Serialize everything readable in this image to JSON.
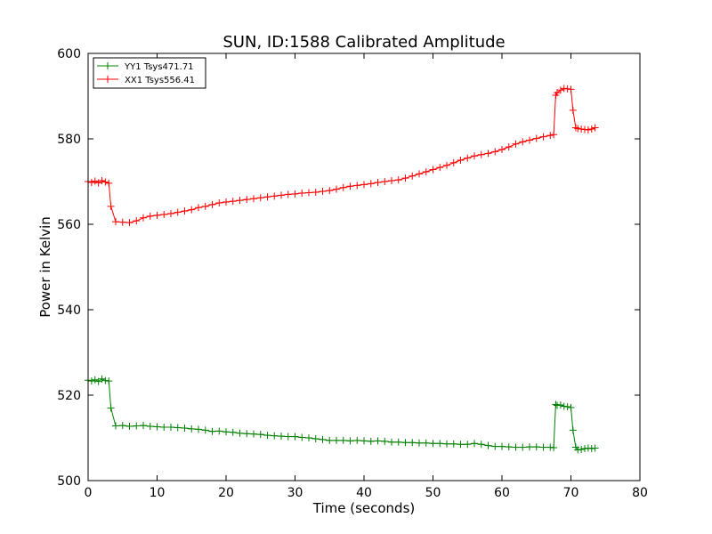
{
  "chart_data": {
    "type": "line",
    "title": "SUN, ID:1588 Calibrated Amplitude",
    "xlabel": "Time (seconds)",
    "ylabel": "Power in Kelvin",
    "xlim": [
      0,
      80
    ],
    "ylim": [
      500,
      600
    ],
    "xticks": [
      "0",
      "10",
      "20",
      "30",
      "40",
      "50",
      "60",
      "70",
      "80"
    ],
    "yticks": [
      "500",
      "520",
      "540",
      "560",
      "580",
      "600"
    ],
    "grid": false,
    "legend_position": "top-left",
    "marker": "+",
    "series": [
      {
        "name": "YY1 Tsys471.71",
        "color": "#008000",
        "x": [
          0,
          0.5,
          1,
          1.5,
          2,
          2.5,
          3,
          3.3,
          4,
          5,
          6,
          7,
          8,
          9,
          10,
          11,
          12,
          13,
          14,
          15,
          16,
          17,
          18,
          19,
          20,
          21,
          22,
          23,
          24,
          25,
          26,
          27,
          28,
          29,
          30,
          31,
          32,
          33,
          34,
          35,
          36,
          37,
          38,
          39,
          40,
          41,
          42,
          43,
          44,
          45,
          46,
          47,
          48,
          49,
          50,
          51,
          52,
          53,
          54,
          55,
          56,
          57,
          58,
          59,
          60,
          61,
          62,
          63,
          64,
          65,
          66,
          67,
          67.5,
          67.8,
          68,
          68.5,
          69,
          69.5,
          70,
          70.3,
          70.7,
          71,
          71.5,
          72,
          72.5,
          73,
          73.5
        ],
        "y": [
          523.5,
          523.3,
          523.6,
          523.2,
          523.8,
          523.4,
          523.3,
          517,
          512.8,
          512.9,
          512.7,
          512.8,
          512.9,
          512.7,
          512.6,
          512.5,
          512.5,
          512.4,
          512.3,
          512.1,
          512,
          511.8,
          511.5,
          511.6,
          511.4,
          511.3,
          511.1,
          511,
          510.9,
          510.8,
          510.6,
          510.5,
          510.4,
          510.3,
          510.3,
          510.1,
          510,
          509.8,
          509.6,
          509.4,
          509.4,
          509.4,
          509.3,
          509.4,
          509.3,
          509.2,
          509.3,
          509.2,
          509,
          509,
          508.9,
          508.9,
          508.8,
          508.8,
          508.7,
          508.7,
          508.6,
          508.6,
          508.5,
          508.5,
          508.7,
          508.5,
          508.2,
          508,
          508,
          507.9,
          507.8,
          507.8,
          507.9,
          507.9,
          507.8,
          507.8,
          507.7,
          517.8,
          517.6,
          517.7,
          517.4,
          517.3,
          517.1,
          511.8,
          507.8,
          507.2,
          507.3,
          507.5,
          507.6,
          507.5,
          507.6
        ]
      },
      {
        "name": "XX1 Tsys556.41",
        "color": "#ff0000",
        "x": [
          0,
          0.5,
          1,
          1.5,
          2,
          2.5,
          3,
          3.3,
          4,
          5,
          6,
          7,
          8,
          9,
          10,
          11,
          12,
          13,
          14,
          15,
          16,
          17,
          18,
          19,
          20,
          21,
          22,
          23,
          24,
          25,
          26,
          27,
          28,
          29,
          30,
          31,
          32,
          33,
          34,
          35,
          36,
          37,
          38,
          39,
          40,
          41,
          42,
          43,
          44,
          45,
          46,
          47,
          48,
          49,
          50,
          51,
          52,
          53,
          54,
          55,
          56,
          57,
          58,
          59,
          60,
          61,
          62,
          63,
          64,
          65,
          66,
          67,
          67.5,
          67.8,
          68,
          68.5,
          69,
          69.5,
          70,
          70.3,
          70.7,
          71,
          71.5,
          72,
          72.5,
          73,
          73.5
        ],
        "y": [
          570,
          569.8,
          570.1,
          569.7,
          570.2,
          569.9,
          569.6,
          564.2,
          560.6,
          560.5,
          560.4,
          560.8,
          561.5,
          561.9,
          562.1,
          562.3,
          562.5,
          562.8,
          563.1,
          563.4,
          563.9,
          564.2,
          564.6,
          565,
          565.2,
          565.4,
          565.6,
          565.8,
          566,
          566.2,
          566.4,
          566.6,
          566.8,
          567,
          567.1,
          567.3,
          567.4,
          567.5,
          567.7,
          567.9,
          568.2,
          568.6,
          568.9,
          569.1,
          569.3,
          569.5,
          569.8,
          570,
          570.2,
          570.4,
          570.8,
          571.3,
          571.8,
          572.3,
          572.8,
          573.3,
          573.8,
          574.4,
          575,
          575.5,
          576,
          576.3,
          576.6,
          577,
          577.5,
          578.1,
          578.8,
          579.3,
          579.7,
          580.1,
          580.5,
          580.8,
          581,
          590.2,
          590.8,
          591.4,
          591.8,
          591.7,
          591.6,
          586.7,
          582.6,
          582.4,
          582.3,
          582.2,
          582.1,
          582.3,
          582.6
        ]
      }
    ]
  }
}
